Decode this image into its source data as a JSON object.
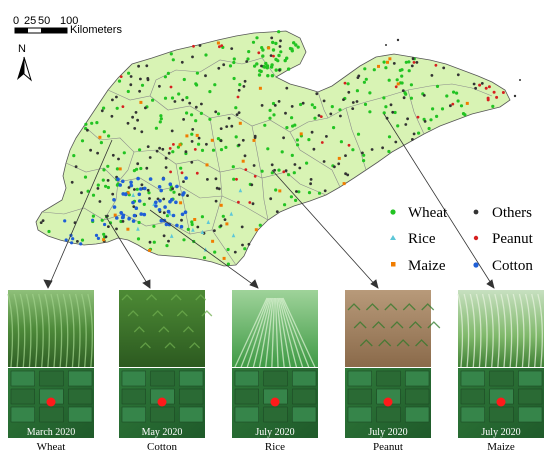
{
  "scale_bar": {
    "ticks": [
      "0",
      "25",
      "50",
      "100"
    ],
    "unit": "Kilometers"
  },
  "north_arrow": {
    "label": "N"
  },
  "legend": {
    "items": [
      {
        "label": "Wheat",
        "color": "#22c322",
        "shape": "circle"
      },
      {
        "label": "Others",
        "color": "#333333",
        "shape": "circle"
      },
      {
        "label": "Rice",
        "color": "#5dc7d8",
        "shape": "triangle"
      },
      {
        "label": "Peanut",
        "color": "#d62020",
        "shape": "circle"
      },
      {
        "label": "Maize",
        "color": "#f07c00",
        "shape": "square"
      },
      {
        "label": "Cotton",
        "color": "#1f5fd6",
        "shape": "circle"
      }
    ]
  },
  "photos": [
    {
      "date": "March 2020",
      "crop": "Wheat",
      "theme": "wheat"
    },
    {
      "date": "May 2020",
      "crop": "Cotton",
      "theme": "cotton"
    },
    {
      "date": "July 2020",
      "crop": "Rice",
      "theme": "rice"
    },
    {
      "date": "July 2020",
      "crop": "Peanut",
      "theme": "peanut"
    },
    {
      "date": "July 2020",
      "crop": "Maize",
      "theme": "maize"
    }
  ],
  "colors": {
    "land": "#d8f3b4",
    "boundary": "#8a8a8a",
    "marker": "#ff1a1a"
  }
}
